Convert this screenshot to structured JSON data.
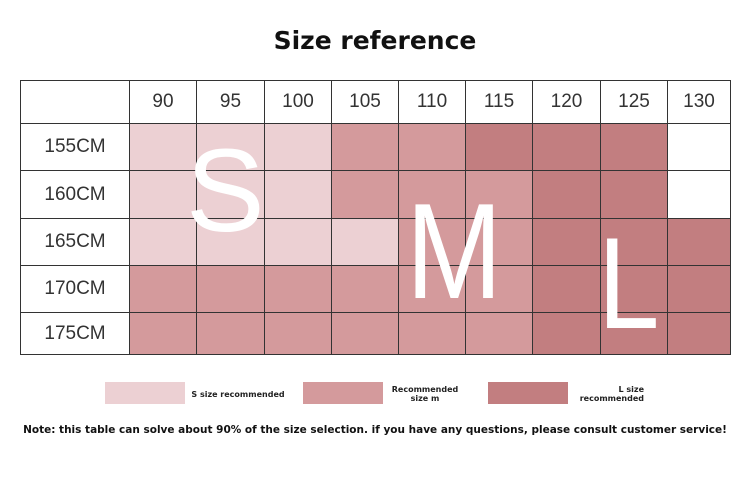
{
  "title": "Size reference",
  "chart_data": {
    "type": "table",
    "columns": [
      "90",
      "95",
      "100",
      "105",
      "110",
      "115",
      "120",
      "125",
      "130"
    ],
    "rows": [
      "155CM",
      "160CM",
      "165CM",
      "170CM",
      "175CM"
    ],
    "cells": [
      [
        "S",
        "S",
        "S",
        "M",
        "M",
        "L",
        "L",
        "L",
        ""
      ],
      [
        "S",
        "S",
        "S",
        "M",
        "M",
        "M",
        "L",
        "L",
        ""
      ],
      [
        "S",
        "S",
        "S",
        "S",
        "M",
        "M",
        "L",
        "L",
        "L"
      ],
      [
        "M",
        "M",
        "M",
        "M",
        "M",
        "M",
        "L",
        "L",
        "L"
      ],
      [
        "M",
        "M",
        "M",
        "M",
        "M",
        "M",
        "L",
        "L",
        "L"
      ]
    ],
    "size_letters": {
      "S": "S",
      "M": "M",
      "L": "L"
    },
    "colors": {
      "S": "#ecd0d3",
      "M": "#d49a9c",
      "L": "#c27e80",
      "": "#ffffff"
    }
  },
  "legend": [
    {
      "key": "S",
      "label": "S size recommended"
    },
    {
      "key": "M",
      "label": "Recommended size m"
    },
    {
      "key": "L",
      "label": "L size recommended"
    }
  ],
  "note": "Note: this table can solve about 90% of the size selection. if you have any questions, please consult customer service!"
}
